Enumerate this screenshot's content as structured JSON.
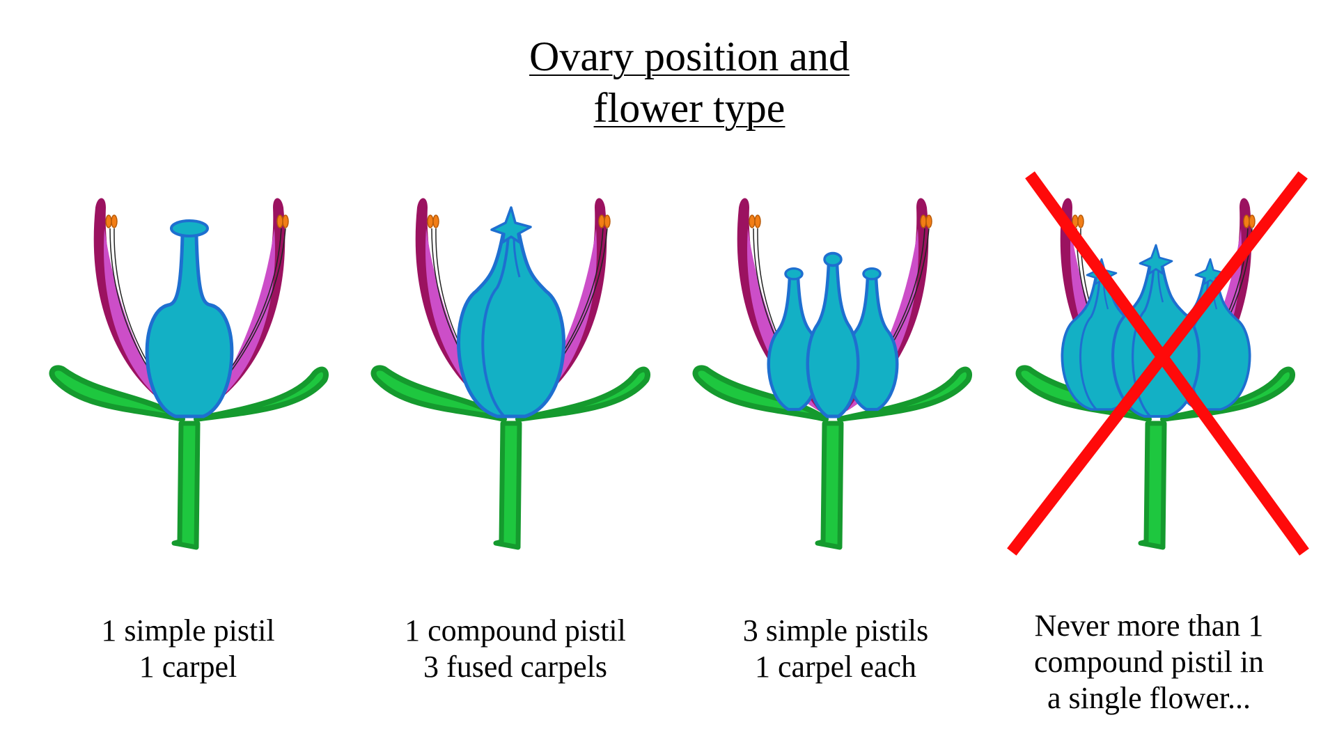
{
  "title": {
    "line1": "Ovary position and",
    "line2": "flower type"
  },
  "panels": [
    {
      "caption_line1": "1 simple pistil",
      "caption_line2": "1 carpel",
      "pistil_type": "simple",
      "pistil_count": 1
    },
    {
      "caption_line1": "1 compound pistil",
      "caption_line2": "3 fused carpels",
      "pistil_type": "compound",
      "pistil_count": 1
    },
    {
      "caption_line1": "3 simple pistils",
      "caption_line2": "1 carpel each",
      "pistil_type": "simple",
      "pistil_count": 3
    },
    {
      "caption_line1": "Never more than 1",
      "caption_line2": "compound pistil in",
      "caption_line3": "a single flower...",
      "pistil_type": "compound",
      "pistil_count": 3,
      "crossed_out": true
    }
  ],
  "colors": {
    "stem": "#1ec73f",
    "stem_outline": "#159a2e",
    "petal_outer": "#9b1260",
    "petal_inner": "#cc4ec8",
    "pistil_fill": "#13b0c5",
    "pistil_outline": "#1e6fd0",
    "anther": "#f27e16",
    "cross": "#ff0a0a"
  }
}
